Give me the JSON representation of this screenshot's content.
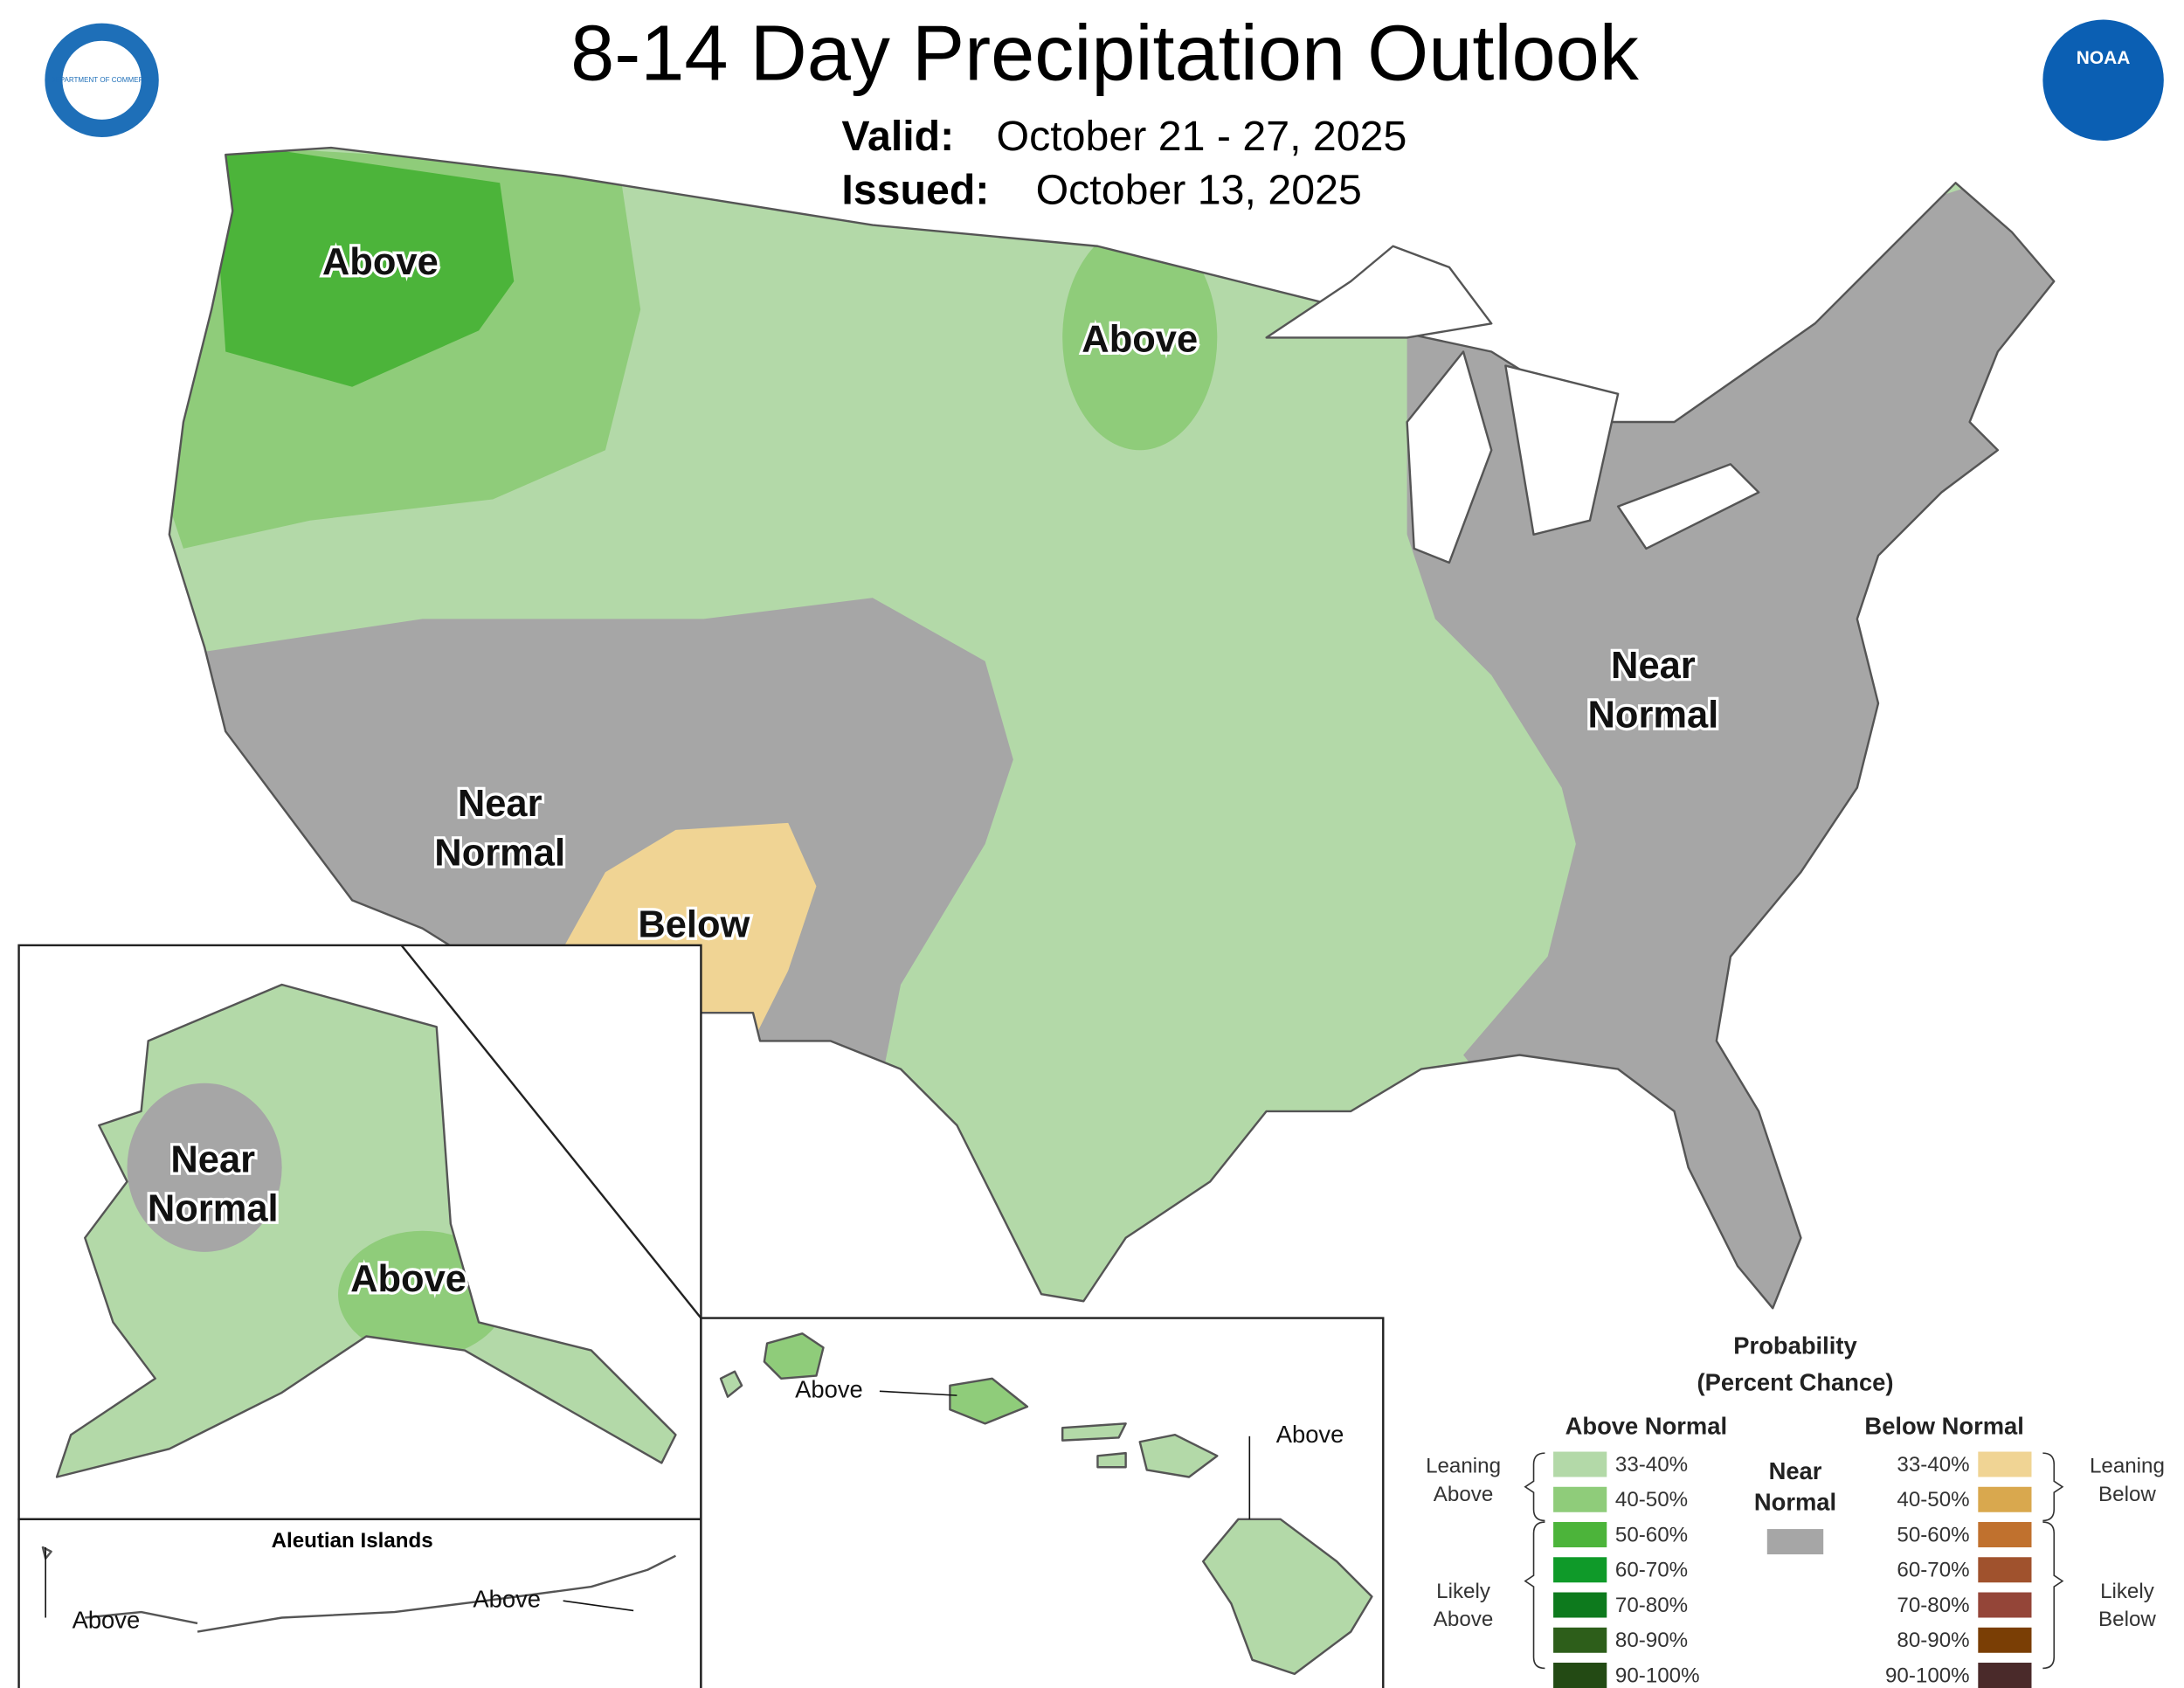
{
  "header": {
    "title": "8-14 Day Precipitation Outlook",
    "valid_label": "Valid:",
    "valid_dates": "October 21 - 27, 2025",
    "issued_label": "Issued:",
    "issued_date": "October 13, 2025"
  },
  "logos": {
    "left": "DEPARTMENT OF COMMERCE",
    "right": "NOAA"
  },
  "map_labels": [
    [
      "Above"
    ],
    [
      "Above"
    ],
    [
      "Near",
      "Normal"
    ],
    [
      "Below"
    ],
    [
      "Near",
      "Normal"
    ],
    [
      "Near",
      "Normal"
    ],
    [
      "Above"
    ],
    [
      "Above"
    ],
    [
      "Above"
    ],
    [
      "Above"
    ],
    [
      "Above"
    ]
  ],
  "inset_title": "Aleutian Islands",
  "legend": {
    "title": [
      "Probability",
      "(Percent Chance)"
    ],
    "above_header": "Above Normal",
    "below_header": "Below Normal",
    "near_label": [
      "Near",
      "Normal"
    ],
    "near_color": "#a6a6a6",
    "above": [
      {
        "label": "33-40%",
        "color": "#b3d9a8"
      },
      {
        "label": "40-50%",
        "color": "#8fcc7a"
      },
      {
        "label": "50-60%",
        "color": "#4cb43a"
      },
      {
        "label": "60-70%",
        "color": "#0f9a29"
      },
      {
        "label": "70-80%",
        "color": "#0d7a1d"
      },
      {
        "label": "80-90%",
        "color": "#2d5e1a"
      },
      {
        "label": "90-100%",
        "color": "#234a14"
      }
    ],
    "below": [
      {
        "label": "33-40%",
        "color": "#f0d494"
      },
      {
        "label": "40-50%",
        "color": "#d9a84e"
      },
      {
        "label": "50-60%",
        "color": "#c0712e"
      },
      {
        "label": "60-70%",
        "color": "#a0522d"
      },
      {
        "label": "70-80%",
        "color": "#944538"
      },
      {
        "label": "80-90%",
        "color": "#7a3e05"
      },
      {
        "label": "90-100%",
        "color": "#4a2a2a"
      }
    ],
    "leaning_above": [
      "Leaning",
      "Above"
    ],
    "likely_above": [
      "Likely",
      "Above"
    ],
    "leaning_below": [
      "Leaning",
      "Below"
    ],
    "likely_below": [
      "Likely",
      "Below"
    ]
  }
}
